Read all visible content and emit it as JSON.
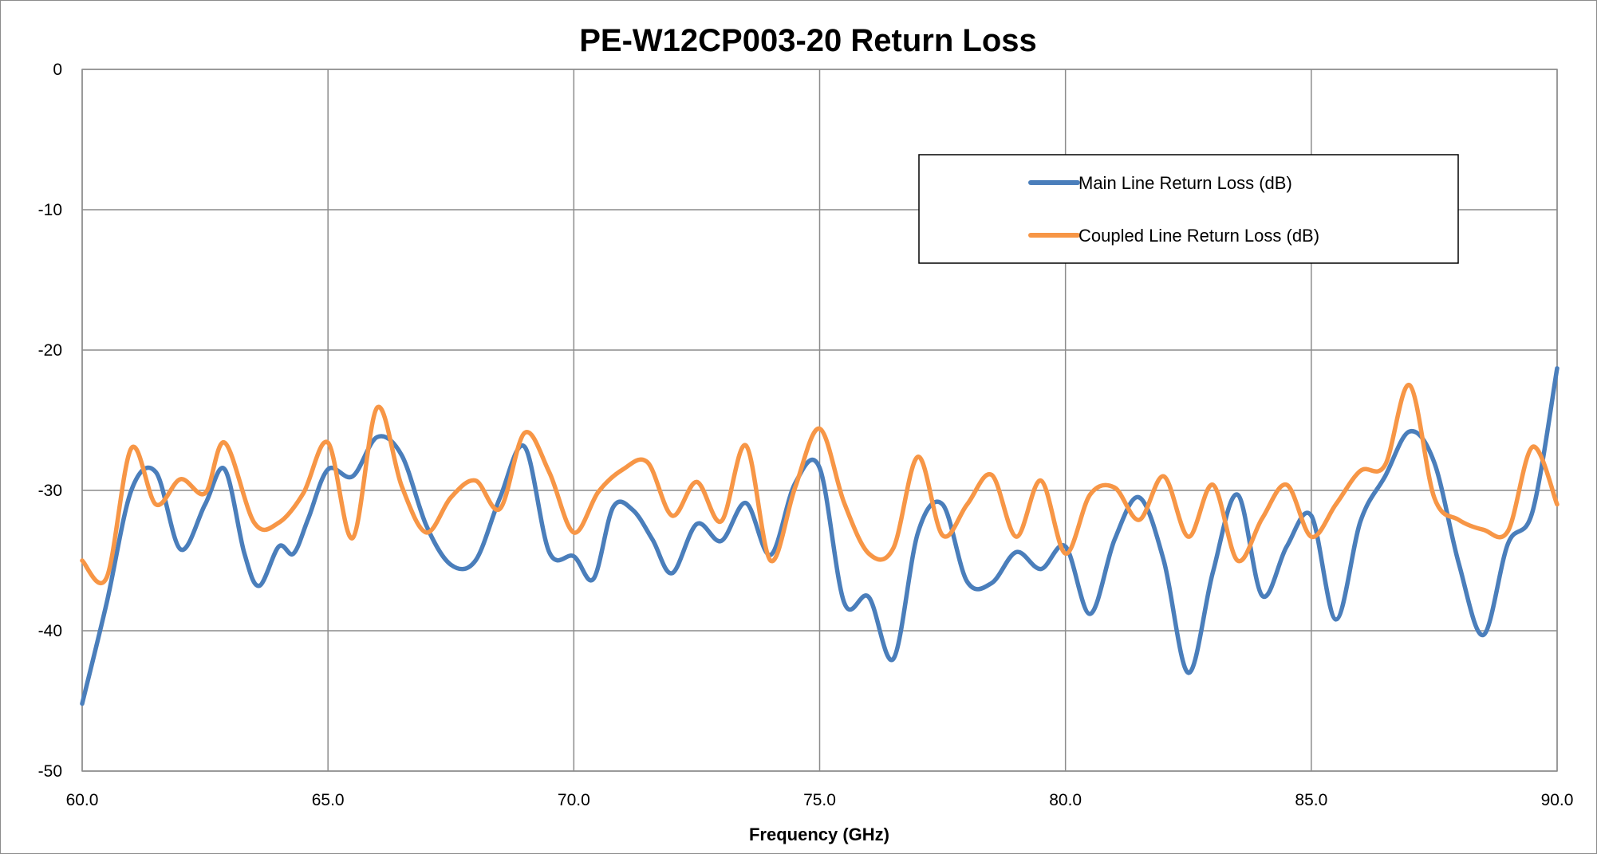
{
  "chart_data": {
    "type": "line",
    "title": "PE-W12CP003-20 Return Loss",
    "xlabel": "Frequency (GHz)",
    "ylabel": "",
    "xlim": [
      60,
      90
    ],
    "ylim": [
      -50,
      0
    ],
    "x_ticks": [
      60,
      65,
      70,
      75,
      80,
      85,
      90
    ],
    "x_tick_labels": [
      "60.0",
      "65.0",
      "70.0",
      "75.0",
      "80.0",
      "85.0",
      "90.0"
    ],
    "y_ticks": [
      0,
      -10,
      -20,
      -30,
      -40,
      -50
    ],
    "y_tick_labels": [
      "0",
      "-10",
      "-20",
      "-30",
      "-40",
      "-50"
    ],
    "grid": true,
    "legend_position": "top-right",
    "series": [
      {
        "name": "Main Line Return Loss (dB)",
        "color": "#4a7ebb",
        "x": [
          60.0,
          60.5,
          61.0,
          61.5,
          62.0,
          62.5,
          62.9,
          63.3,
          63.6,
          64.0,
          64.3,
          64.6,
          65.0,
          65.5,
          66.0,
          66.5,
          67.0,
          67.5,
          68.0,
          68.5,
          69.0,
          69.5,
          70.0,
          70.4,
          70.8,
          71.2,
          71.6,
          72.0,
          72.5,
          73.0,
          73.5,
          74.0,
          74.5,
          75.0,
          75.5,
          76.0,
          76.5,
          77.0,
          77.5,
          78.0,
          78.5,
          79.0,
          79.5,
          80.0,
          80.5,
          81.0,
          81.5,
          82.0,
          82.5,
          83.0,
          83.5,
          84.0,
          84.5,
          85.0,
          85.5,
          86.0,
          86.5,
          87.0,
          87.5,
          88.0,
          88.5,
          89.0,
          89.5,
          90.0
        ],
        "values": [
          -45.2,
          -38.0,
          -30.0,
          -28.7,
          -34.2,
          -31.0,
          -28.5,
          -34.5,
          -36.8,
          -34.0,
          -34.5,
          -32.0,
          -28.5,
          -29.0,
          -26.2,
          -27.5,
          -32.5,
          -35.3,
          -35.0,
          -30.5,
          -26.9,
          -34.4,
          -34.7,
          -36.3,
          -31.2,
          -31.4,
          -33.5,
          -35.9,
          -32.4,
          -33.6,
          -30.9,
          -34.6,
          -29.5,
          -28.4,
          -38.0,
          -37.6,
          -42.0,
          -33.0,
          -31.0,
          -36.5,
          -36.6,
          -34.4,
          -35.6,
          -34.0,
          -38.8,
          -33.5,
          -30.5,
          -35.0,
          -43.0,
          -35.8,
          -30.3,
          -37.5,
          -34.0,
          -31.8,
          -39.2,
          -32.2,
          -29.0,
          -25.8,
          -28.0,
          -35.2,
          -40.3,
          -33.8,
          -31.5,
          -21.3
        ]
      },
      {
        "name": "Coupled Line Return Loss (dB)",
        "color": "#f79646",
        "x": [
          60.0,
          60.5,
          61.0,
          61.5,
          62.0,
          62.5,
          62.9,
          63.5,
          64.0,
          64.5,
          65.0,
          65.5,
          66.0,
          66.5,
          67.0,
          67.5,
          68.0,
          68.5,
          69.0,
          69.5,
          70.0,
          70.5,
          71.0,
          71.5,
          72.0,
          72.5,
          73.0,
          73.5,
          74.0,
          74.5,
          75.0,
          75.5,
          76.0,
          76.5,
          77.0,
          77.5,
          78.0,
          78.5,
          79.0,
          79.5,
          80.0,
          80.5,
          81.0,
          81.5,
          82.0,
          82.5,
          83.0,
          83.5,
          84.0,
          84.5,
          85.0,
          85.5,
          86.0,
          86.5,
          87.0,
          87.5,
          88.0,
          88.5,
          89.0,
          89.5,
          90.0
        ],
        "values": [
          -35.0,
          -36.2,
          -27.0,
          -31.0,
          -29.2,
          -30.2,
          -26.6,
          -32.3,
          -32.3,
          -30.2,
          -26.6,
          -33.4,
          -24.1,
          -29.7,
          -33.0,
          -30.5,
          -29.3,
          -31.3,
          -25.9,
          -28.7,
          -33.0,
          -30.1,
          -28.5,
          -28.0,
          -31.8,
          -29.4,
          -32.2,
          -26.8,
          -35.0,
          -29.8,
          -25.6,
          -30.9,
          -34.5,
          -34.1,
          -27.6,
          -33.2,
          -31.0,
          -28.9,
          -33.3,
          -29.3,
          -34.5,
          -30.3,
          -29.8,
          -32.1,
          -29.0,
          -33.3,
          -29.6,
          -35.0,
          -32.0,
          -29.6,
          -33.3,
          -31.0,
          -28.6,
          -28.2,
          -22.5,
          -30.5,
          -32.1,
          -32.8,
          -32.9,
          -26.9,
          -31.0
        ]
      }
    ]
  }
}
